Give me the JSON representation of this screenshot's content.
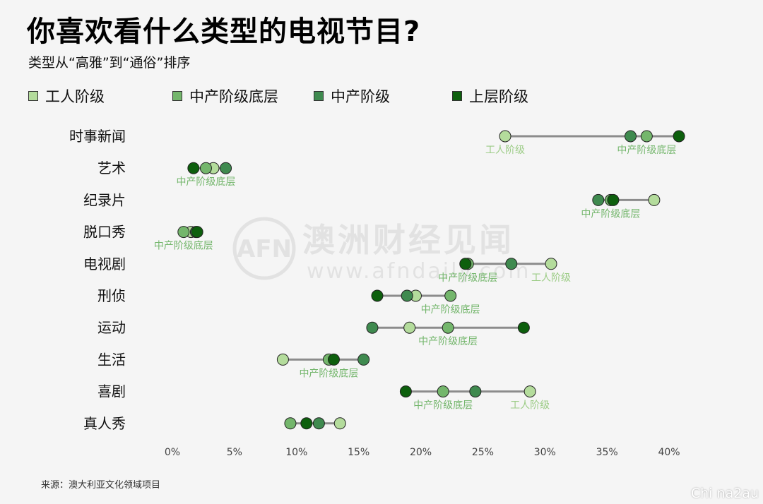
{
  "title": "你喜欢看什么类型的电视节目?",
  "subtitle": "类型从“高雅”到“通俗”排序",
  "source": "来源：澳大利亚文化领域项目",
  "watermark_logo": {
    "badge": "AFN",
    "name": "澳洲财经见闻",
    "url": "www.afndaily.com"
  },
  "corner_watermark": "Chi na2au",
  "colors": {
    "工人阶级": "#b4dc9c",
    "中产阶级底层": "#74b66c",
    "中产阶级": "#3f8a4f",
    "上层阶级": "#0d5f0d",
    "connector": "#8c8c8c"
  },
  "chart_data": {
    "type": "dumbbell",
    "title": "你喜欢看什么类型的电视节目?",
    "subtitle": "类型从“高雅”到“通俗”排序",
    "xlim": [
      0,
      40
    ],
    "x_unit": "%",
    "x_ticks": [
      "0%",
      "5%",
      "10%",
      "15%",
      "20%",
      "25%",
      "30%",
      "35%",
      "40%"
    ],
    "legend_position": "top",
    "categories": [
      "时事新闻",
      "艺术",
      "纪录片",
      "脱口秀",
      "电视剧",
      "刑侦",
      "运动",
      "生活",
      "喜剧",
      "真人秀"
    ],
    "series": [
      {
        "name": "工人阶级",
        "values": [
          26.8,
          3.3,
          38.8,
          1.5,
          30.5,
          19.6,
          19.1,
          8.9,
          28.8,
          13.5
        ]
      },
      {
        "name": "中产阶级底层",
        "values": [
          38.2,
          2.7,
          35.3,
          0.9,
          23.8,
          22.4,
          22.2,
          12.6,
          21.8,
          9.5
        ]
      },
      {
        "name": "中产阶级",
        "values": [
          36.9,
          4.3,
          34.3,
          1.9,
          27.3,
          18.9,
          16.1,
          15.4,
          24.4,
          11.8
        ]
      },
      {
        "name": "上层阶级",
        "values": [
          40.8,
          1.7,
          35.5,
          2.0,
          23.6,
          16.5,
          28.3,
          13.0,
          18.8,
          10.8
        ]
      }
    ],
    "annotations": [
      {
        "category": "时事新闻",
        "label": "工人阶级",
        "series": "工人阶级"
      },
      {
        "category": "时事新闻",
        "label": "中产阶级底层",
        "series": "中产阶级底层"
      },
      {
        "category": "艺术",
        "label": "中产阶级底层",
        "series": "中产阶级底层"
      },
      {
        "category": "纪录片",
        "label": "中产阶级底层",
        "series": "中产阶级底层"
      },
      {
        "category": "脱口秀",
        "label": "中产阶级底层",
        "series": "中产阶级底层"
      },
      {
        "category": "电视剧",
        "label": "中产阶级底层",
        "series": "中产阶级底层"
      },
      {
        "category": "电视剧",
        "label": "工人阶级",
        "series": "工人阶级"
      },
      {
        "category": "刑侦",
        "label": "中产阶级底层",
        "series": "中产阶级底层"
      },
      {
        "category": "运动",
        "label": "中产阶级底层",
        "series": "中产阶级底层"
      },
      {
        "category": "生活",
        "label": "中产阶级底层",
        "series": "中产阶级底层"
      },
      {
        "category": "喜剧",
        "label": "中产阶级底层",
        "series": "中产阶级底层"
      },
      {
        "category": "喜剧",
        "label": "工人阶级",
        "series": "工人阶级"
      }
    ]
  }
}
